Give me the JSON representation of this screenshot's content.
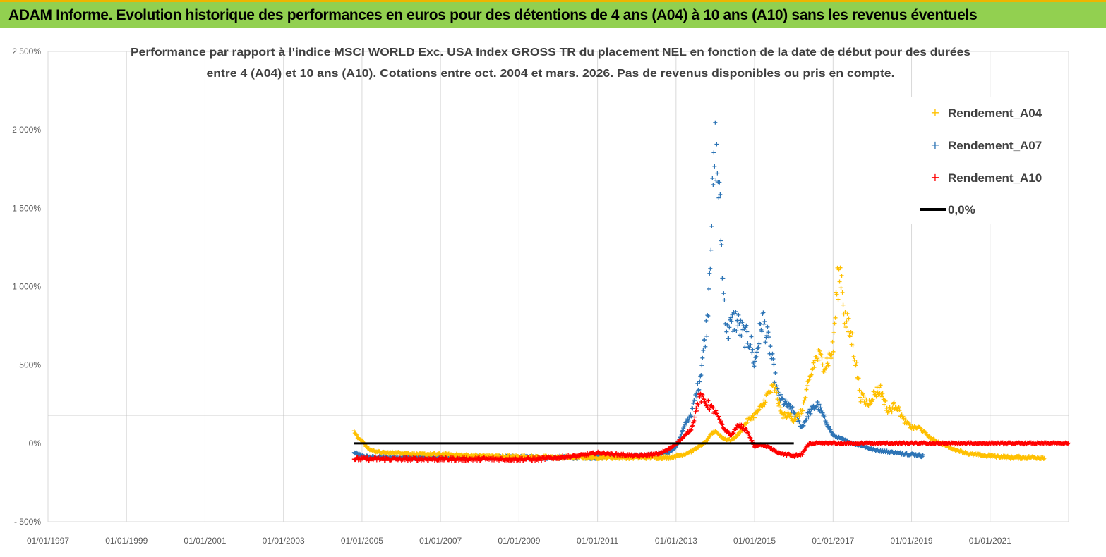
{
  "header": {
    "title": "ADAM Informe. Evolution historique des performances en euros pour des détentions de 4 ans (A04) à 10 ans (A10) sans les revenus éventuels"
  },
  "chart_data": {
    "type": "scatter",
    "title_lines": [
      "Performance par rapport à l'indice MSCI WORLD Exc. USA Index GROSS TR  du placement NEL en fonction de la date de début pour des durées",
      "entre 4 (A04) et 10 ans (A10). Cotations entre oct. 2004 et mars. 2026. Pas de revenus disponibles ou pris en compte."
    ],
    "xlabel": "",
    "ylabel": "",
    "x_tick_labels": [
      "01/01/1997",
      "01/01/1999",
      "01/01/2001",
      "01/01/2003",
      "01/01/2005",
      "01/01/2007",
      "01/01/2009",
      "01/01/2011",
      "01/01/2013",
      "01/01/2015",
      "01/01/2017",
      "01/01/2019",
      "01/01/2021"
    ],
    "y_tick_labels": [
      "2 500%",
      "2 000%",
      "1 500%",
      "1 000%",
      "500%",
      "0%",
      "- 500%"
    ],
    "xlim": [
      1997.0,
      2023.0
    ],
    "ylim": [
      -500,
      2500
    ],
    "grid": "vertical",
    "legend_position": "top-right",
    "colors": {
      "A04": "#ffc000",
      "A07": "#2e75b6",
      "A10": "#ff0000",
      "zero": "#000000"
    },
    "series": [
      {
        "name": "Rendement_A04",
        "marker": "+",
        "x": [
          2004.8,
          2004.9,
          2005.0,
          2005.1,
          2005.2,
          2005.5,
          2006.0,
          2006.5,
          2007.0,
          2008.0,
          2009.0,
          2010.0,
          2011.0,
          2011.5,
          2012.0,
          2012.5,
          2012.8,
          2013.0,
          2013.2,
          2013.4,
          2013.6,
          2013.8,
          2013.9,
          2014.0,
          2014.2,
          2014.4,
          2014.6,
          2014.8,
          2015.0,
          2015.2,
          2015.3,
          2015.5,
          2015.7,
          2015.9,
          2016.0,
          2016.2,
          2016.4,
          2016.5,
          2016.6,
          2016.8,
          2017.0,
          2017.1,
          2017.2,
          2017.3,
          2017.5,
          2017.7,
          2017.9,
          2018.0,
          2018.2,
          2018.4,
          2018.6,
          2018.8,
          2019.0,
          2019.2,
          2019.5,
          2020.0,
          2020.5,
          2021.0,
          2021.5,
          2022.0,
          2022.4
        ],
        "y": [
          80,
          30,
          20,
          -20,
          -40,
          -60,
          -60,
          -70,
          -70,
          -80,
          -85,
          -90,
          -90,
          -90,
          -90,
          -90,
          -90,
          -80,
          -70,
          -50,
          -20,
          20,
          60,
          80,
          30,
          20,
          60,
          140,
          180,
          240,
          300,
          360,
          180,
          180,
          150,
          200,
          400,
          500,
          560,
          500,
          600,
          1000,
          1100,
          800,
          650,
          300,
          250,
          300,
          350,
          200,
          250,
          150,
          100,
          100,
          30,
          -30,
          -70,
          -80,
          -90,
          -90,
          -90
        ]
      },
      {
        "name": "Rendement_A07",
        "marker": "+",
        "x": [
          2004.8,
          2005.0,
          2005.2,
          2005.5,
          2006.0,
          2007.0,
          2008.0,
          2009.0,
          2010.0,
          2010.5,
          2011.0,
          2011.5,
          2012.0,
          2012.5,
          2012.8,
          2013.0,
          2013.2,
          2013.4,
          2013.6,
          2013.8,
          2013.9,
          2014.0,
          2014.1,
          2014.2,
          2014.3,
          2014.5,
          2014.7,
          2014.9,
          2015.0,
          2015.2,
          2015.4,
          2015.6,
          2015.8,
          2016.0,
          2016.2,
          2016.4,
          2016.6,
          2016.8,
          2017.0,
          2017.2,
          2017.5,
          2017.8,
          2018.0,
          2018.3,
          2018.6,
          2019.0,
          2019.3
        ],
        "y": [
          -60,
          -80,
          -90,
          -90,
          -90,
          -90,
          -90,
          -90,
          -90,
          -90,
          -90,
          -80,
          -80,
          -70,
          -60,
          -20,
          100,
          200,
          400,
          800,
          1400,
          1900,
          1600,
          1000,
          700,
          800,
          700,
          650,
          500,
          800,
          600,
          300,
          250,
          200,
          100,
          200,
          250,
          150,
          50,
          30,
          0,
          -20,
          -40,
          -50,
          -60,
          -70,
          -80
        ]
      },
      {
        "name": "Rendement_A10",
        "marker": "+",
        "x": [
          2004.8,
          2005.0,
          2005.5,
          2006.0,
          2007.0,
          2008.0,
          2009.0,
          2009.5,
          2010.0,
          2010.5,
          2011.0,
          2011.5,
          2012.0,
          2012.5,
          2012.8,
          2013.0,
          2013.2,
          2013.4,
          2013.6,
          2013.8,
          2014.0,
          2014.2,
          2014.4,
          2014.6,
          2014.8,
          2015.0,
          2015.2,
          2015.4,
          2015.6,
          2015.8,
          2016.0,
          2016.2,
          2016.4,
          2017.0,
          2018.0,
          2019.0,
          2020.0,
          2021.0,
          2022.0,
          2023.0
        ],
        "y": [
          -100,
          -100,
          -100,
          -100,
          -100,
          -100,
          -100,
          -100,
          -90,
          -80,
          -60,
          -70,
          -80,
          -70,
          -40,
          0,
          40,
          100,
          300,
          250,
          200,
          100,
          50,
          120,
          80,
          -20,
          -10,
          -30,
          -60,
          -70,
          -80,
          -70,
          0,
          0,
          0,
          0,
          0,
          0,
          0,
          0
        ]
      },
      {
        "name": "0,0%",
        "marker": "line",
        "x": [
          2004.8,
          2016.0
        ],
        "y": [
          0,
          0
        ]
      }
    ]
  }
}
